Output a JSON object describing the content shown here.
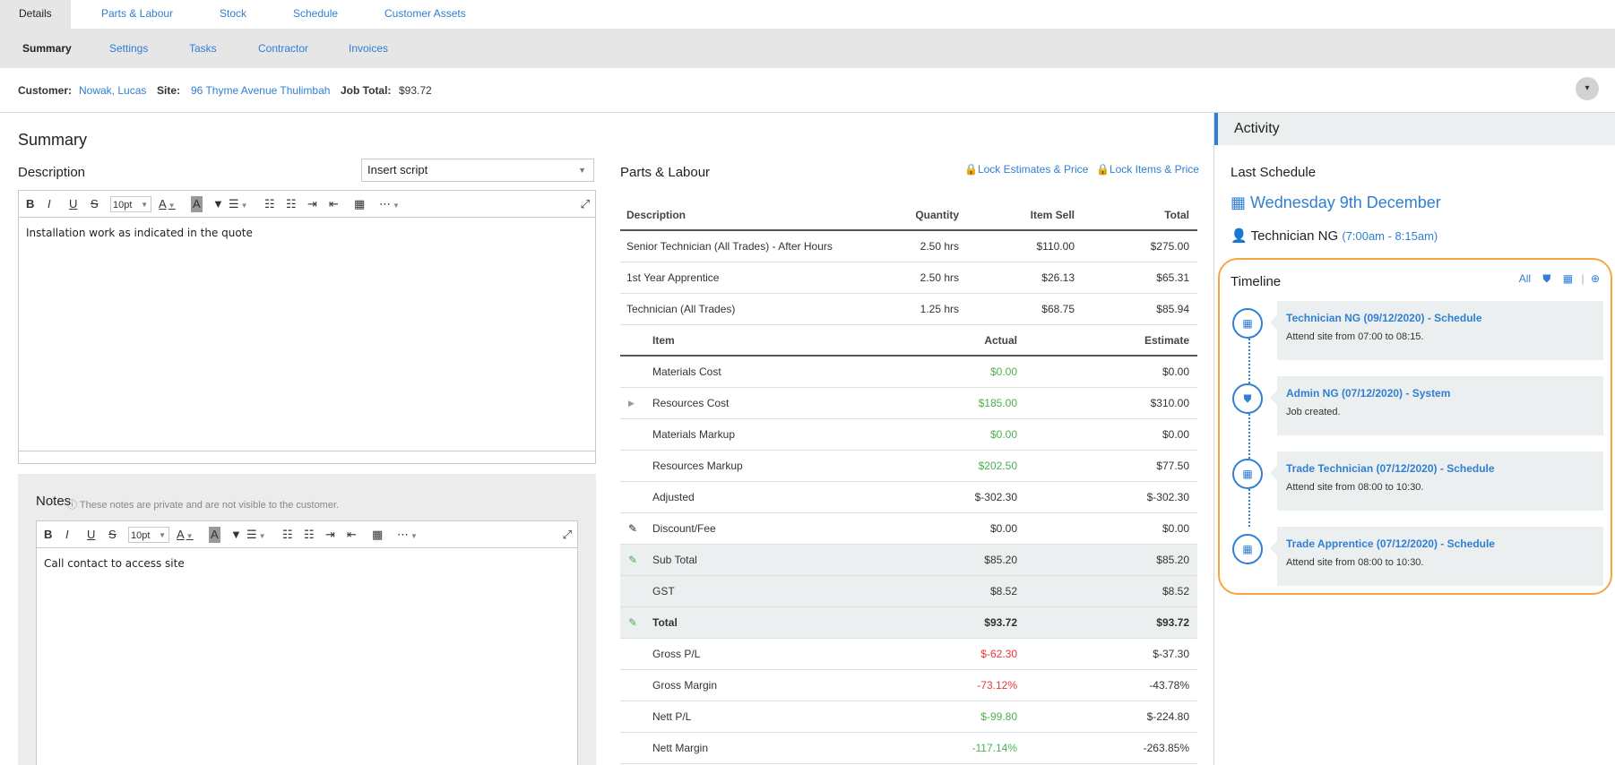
{
  "tabs_primary": [
    "Details",
    "Parts & Labour",
    "Stock",
    "Schedule",
    "Customer Assets"
  ],
  "tabs_secondary": [
    "Summary",
    "Settings",
    "Tasks",
    "Contractor",
    "Invoices"
  ],
  "info": {
    "customer_label": "Customer:",
    "customer": "Nowak, Lucas",
    "site_label": "Site:",
    "site": "96 Thyme Avenue Thulimbah",
    "job_total_label": "Job Total:",
    "job_total": "$93.72",
    "collapse_icon": "▾"
  },
  "summary": {
    "title": "Summary",
    "description_label": "Description",
    "insert_script": "Insert script",
    "font_size": "10pt",
    "description_text": "Installation work as indicated in the quote",
    "notes_label": "Notes",
    "notes_hint": "These notes are private and are not visible to the customer.",
    "notes_text": "Call contact to access site"
  },
  "parts": {
    "title": "Parts & Labour",
    "lock_estimates": "Lock Estimates & Price",
    "lock_items": "Lock Items & Price",
    "labour_headers": [
      "Description",
      "Quantity",
      "Item Sell",
      "Total"
    ],
    "labour_rows": [
      [
        "Senior Technician (All Trades) - After Hours",
        "2.50 hrs",
        "$110.00",
        "$275.00"
      ],
      [
        "1st Year Apprentice",
        "2.50 hrs",
        "$26.13",
        "$65.31"
      ],
      [
        "Technician (All Trades)",
        "1.25 hrs",
        "$68.75",
        "$85.94"
      ]
    ],
    "cost_headers": [
      "Item",
      "Actual",
      "Estimate"
    ],
    "cost_rows": [
      {
        "item": "Materials Cost",
        "actual": "$0.00",
        "estimate": "$0.00"
      },
      {
        "item": "Resources Cost",
        "actual": "$185.00",
        "estimate": "$310.00"
      },
      {
        "item": "Materials Markup",
        "actual": "$0.00",
        "estimate": "$0.00"
      },
      {
        "item": "Resources Markup",
        "actual": "$202.50",
        "estimate": "$77.50"
      },
      {
        "item": "Adjusted",
        "actual": "$-302.30",
        "estimate": "$-302.30"
      },
      {
        "item": "Discount/Fee",
        "actual": "$0.00",
        "estimate": "$0.00"
      },
      {
        "item": "Sub Total",
        "actual": "$85.20",
        "estimate": "$85.20"
      },
      {
        "item": "GST",
        "actual": "$8.52",
        "estimate": "$8.52"
      },
      {
        "item": "Total",
        "actual": "$93.72",
        "estimate": "$93.72"
      },
      {
        "item": "Gross P/L",
        "actual": "$-62.30",
        "estimate": "$-37.30"
      },
      {
        "item": "Gross Margin",
        "actual": "-73.12%",
        "estimate": "-43.78%"
      },
      {
        "item": "Nett P/L",
        "actual": "$-99.80",
        "estimate": "$-224.80"
      },
      {
        "item": "Nett Margin",
        "actual": "-117.14%",
        "estimate": "-263.85%"
      }
    ]
  },
  "activity": {
    "title": "Activity",
    "last_schedule_label": "Last Schedule",
    "last_schedule_date": "Wednesday 9th December",
    "last_schedule_tech": "Technician NG",
    "last_schedule_time": "(7:00am - 8:15am)",
    "timeline_title": "Timeline",
    "timeline_all": "All",
    "timeline": [
      {
        "title": "Technician NG (09/12/2020) - Schedule",
        "sub": "Attend site from 07:00 to 08:15.",
        "icon": "calendar-icon"
      },
      {
        "title": "Admin NG (07/12/2020) - System",
        "sub": "Job created.",
        "icon": "shield-icon"
      },
      {
        "title": "Trade Technician (07/12/2020) - Schedule",
        "sub": "Attend site from 08:00 to 10:30.",
        "icon": "calendar-icon"
      },
      {
        "title": "Trade Apprentice (07/12/2020) - Schedule",
        "sub": "Attend site from 08:00 to 10:30.",
        "icon": "calendar-icon"
      }
    ]
  },
  "colors": {
    "accent": "#2f7fd3",
    "positive": "#4caf50",
    "negative": "#e53935",
    "timeline_border": "#f5a640"
  }
}
